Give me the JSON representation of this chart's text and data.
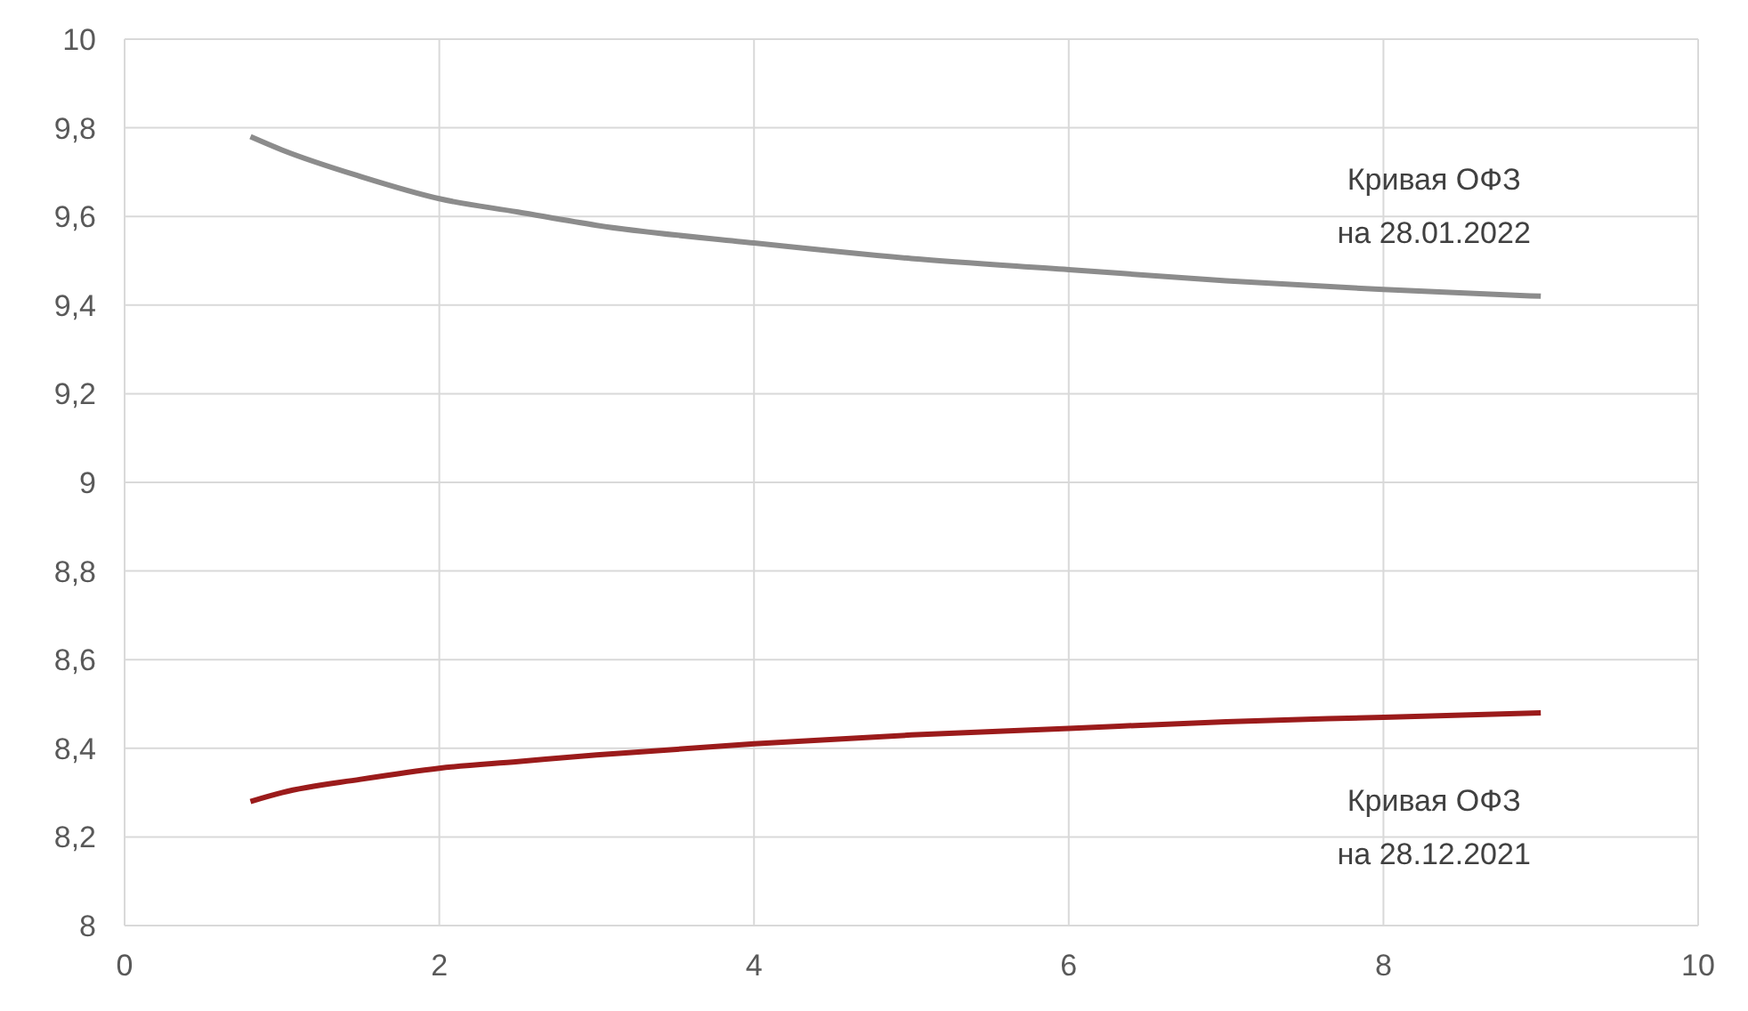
{
  "chart_data": {
    "type": "line",
    "x": [
      0.8,
      1,
      1.5,
      2,
      2.5,
      3,
      4,
      5,
      6,
      7,
      8,
      9
    ],
    "series": [
      {
        "name": "Кривая ОФЗ на 28.01.2022",
        "color": "#8c8c8c",
        "values": [
          9.78,
          9.75,
          9.69,
          9.64,
          9.61,
          9.58,
          9.54,
          9.505,
          9.48,
          9.455,
          9.435,
          9.42
        ]
      },
      {
        "name": "Кривая ОФЗ на 28.12.2021",
        "color": "#9b1b1b",
        "values": [
          8.28,
          8.3,
          8.33,
          8.355,
          8.37,
          8.385,
          8.41,
          8.43,
          8.445,
          8.46,
          8.47,
          8.48
        ]
      }
    ],
    "xlim": [
      0,
      10
    ],
    "xticks": [
      0,
      2,
      4,
      6,
      8,
      10
    ],
    "ylim": [
      8,
      10
    ],
    "yticks": [
      8,
      {
        "value": 8.2,
        "label": "8,2"
      },
      {
        "value": 8.4,
        "label": "8,4"
      },
      {
        "value": 8.6,
        "label": "8,6"
      },
      {
        "value": 8.8,
        "label": "8,8"
      },
      9,
      {
        "value": 9.2,
        "label": "9,2"
      },
      {
        "value": 9.4,
        "label": "9,4"
      },
      {
        "value": 9.6,
        "label": "9,6"
      },
      {
        "value": 9.8,
        "label": "9,8"
      },
      10
    ],
    "grid": true,
    "marker": "none",
    "line_style": "solid"
  }
}
